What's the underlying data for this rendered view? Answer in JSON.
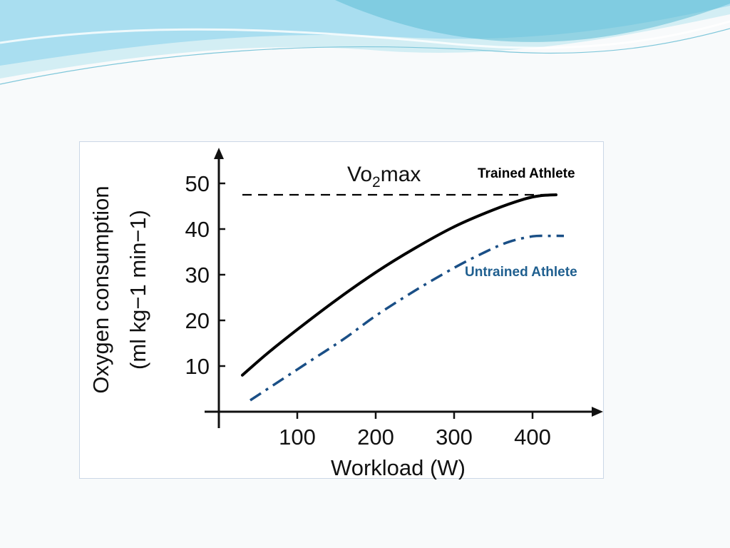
{
  "colors": {
    "trained": "#000000",
    "untrained": "#1a4f86",
    "reference": "#000000",
    "wave_light": "#bfe6ef",
    "wave_mid": "#8fd3e3",
    "wave_dark": "#4aaecb"
  },
  "chart_data": {
    "type": "line",
    "title": "",
    "xlabel": "Workload (W)",
    "ylabel_line1": "Oxygen consumption",
    "ylabel_line2": "(ml kg−1 min−1)",
    "xlim": [
      0,
      480
    ],
    "ylim": [
      0,
      55
    ],
    "xticks": [
      100,
      200,
      300,
      400
    ],
    "yticks": [
      10,
      20,
      30,
      40,
      50
    ],
    "grid": false,
    "reference_line": {
      "label_main": "Vo",
      "label_sub": "2",
      "label_rest": "max",
      "y": 47.5,
      "x_range": [
        30,
        430
      ]
    },
    "series": [
      {
        "name": "Trained Athlete",
        "style": "solid",
        "x": [
          30,
          60,
          100,
          150,
          200,
          250,
          300,
          350,
          390,
          410,
          430
        ],
        "y": [
          8,
          12.5,
          18,
          24.5,
          30.5,
          35.8,
          40.5,
          44.2,
          46.6,
          47.3,
          47.5
        ]
      },
      {
        "name": "Untrained Athlete",
        "style": "dash-dot",
        "x": [
          40,
          80,
          120,
          160,
          200,
          250,
          300,
          340,
          370,
          400,
          420,
          440
        ],
        "y": [
          2.5,
          7,
          11.5,
          16,
          21,
          26.5,
          31.5,
          35,
          37.2,
          38.4,
          38.5,
          38.5
        ]
      }
    ]
  }
}
